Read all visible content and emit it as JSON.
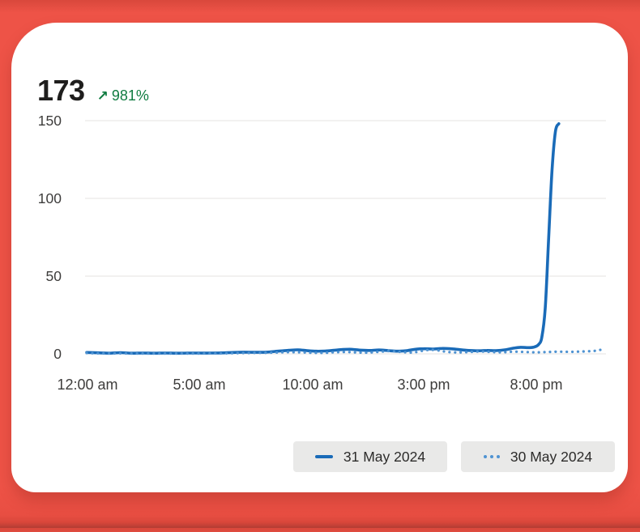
{
  "header": {
    "value": "173",
    "delta_arrow": "↗",
    "delta": "981%",
    "delta_percent": 981,
    "delta_color": "#107C41"
  },
  "colors": {
    "background_red": "#ee5347",
    "card": "#ffffff",
    "grid": "#e4e3e2",
    "axis_text": "#3e3d3c",
    "legend_bg": "#e9e9e8",
    "series_solid": "#1a6bb8",
    "series_dotted": "#4f93d2",
    "value_text": "#1f1e1d"
  },
  "legend": {
    "items": [
      {
        "label": "31 May 2024",
        "marker": "solid-line"
      },
      {
        "label": "30 May 2024",
        "marker": "dotted-line"
      }
    ]
  },
  "chart_data": {
    "type": "line",
    "title": "",
    "xlabel": "",
    "ylabel": "",
    "grid": true,
    "legend_position": "bottom-right",
    "x_axis": {
      "unit": "hour-of-day",
      "ticks": [
        "12:00 am",
        "5:00 am",
        "10:00 am",
        "3:00 pm",
        "8:00 pm"
      ],
      "tick_hours": [
        0,
        5,
        10,
        15,
        20
      ],
      "range_hours": [
        0,
        23.1
      ]
    },
    "y_axis": {
      "ticks": [
        "150",
        "100",
        "50",
        "0"
      ],
      "tick_values": [
        150,
        100,
        50,
        0
      ],
      "range": [
        0,
        150
      ]
    },
    "series": [
      {
        "name": "31 May 2024",
        "style": "solid",
        "color": "#1a6bb8",
        "points": [
          [
            0,
            0.9
          ],
          [
            0.5,
            0.7
          ],
          [
            1,
            0.4
          ],
          [
            1.5,
            0.8
          ],
          [
            2,
            0.4
          ],
          [
            2.5,
            0.5
          ],
          [
            3,
            0.4
          ],
          [
            3.5,
            0.5
          ],
          [
            4,
            0.4
          ],
          [
            4.5,
            0.5
          ],
          [
            5,
            0.5
          ],
          [
            5.5,
            0.5
          ],
          [
            6,
            0.6
          ],
          [
            6.5,
            0.9
          ],
          [
            7,
            1.1
          ],
          [
            7.5,
            1.0
          ],
          [
            8,
            1.1
          ],
          [
            8.5,
            1.7
          ],
          [
            9,
            2.3
          ],
          [
            9.4,
            2.6
          ],
          [
            9.8,
            2.1
          ],
          [
            10.2,
            1.7
          ],
          [
            10.6,
            1.8
          ],
          [
            11,
            2.3
          ],
          [
            11.4,
            2.8
          ],
          [
            11.8,
            2.9
          ],
          [
            12.2,
            2.4
          ],
          [
            12.6,
            2.2
          ],
          [
            13,
            2.5
          ],
          [
            13.4,
            2.1
          ],
          [
            13.8,
            1.7
          ],
          [
            14.2,
            2.0
          ],
          [
            14.6,
            2.9
          ],
          [
            15,
            3.3
          ],
          [
            15.4,
            3.1
          ],
          [
            15.8,
            3.5
          ],
          [
            16.2,
            3.3
          ],
          [
            16.6,
            2.7
          ],
          [
            17,
            2.2
          ],
          [
            17.4,
            2.0
          ],
          [
            17.8,
            2.2
          ],
          [
            18.2,
            2.1
          ],
          [
            18.6,
            2.6
          ],
          [
            19,
            3.7
          ],
          [
            19.3,
            4.2
          ],
          [
            19.6,
            4.0
          ],
          [
            19.9,
            4.4
          ],
          [
            20.1,
            6.0
          ],
          [
            20.25,
            11
          ],
          [
            20.4,
            30
          ],
          [
            20.55,
            75
          ],
          [
            20.7,
            118
          ],
          [
            20.85,
            143
          ],
          [
            21,
            148
          ]
        ]
      },
      {
        "name": "30 May 2024",
        "style": "dotted",
        "color": "#4f93d2",
        "points": [
          [
            0,
            0.5
          ],
          [
            0.5,
            0.3
          ],
          [
            1,
            0.2
          ],
          [
            1.5,
            0.3
          ],
          [
            2,
            0.2
          ],
          [
            2.5,
            0.2
          ],
          [
            3,
            0.2
          ],
          [
            3.5,
            0.2
          ],
          [
            4,
            0.2
          ],
          [
            4.5,
            0.2
          ],
          [
            5,
            0.2
          ],
          [
            5.5,
            0.3
          ],
          [
            6,
            0.3
          ],
          [
            6.5,
            0.4
          ],
          [
            7,
            0.5
          ],
          [
            7.5,
            0.6
          ],
          [
            8,
            0.7
          ],
          [
            8.5,
            0.9
          ],
          [
            9,
            1.1
          ],
          [
            9.5,
            1.0
          ],
          [
            10,
            0.7
          ],
          [
            10.5,
            0.6
          ],
          [
            11,
            1.0
          ],
          [
            11.5,
            1.2
          ],
          [
            12,
            0.9
          ],
          [
            12.5,
            0.8
          ],
          [
            13,
            1.3
          ],
          [
            13.5,
            1.8
          ],
          [
            14,
            1.2
          ],
          [
            14.5,
            0.9
          ],
          [
            15,
            2.1
          ],
          [
            15.3,
            2.6
          ],
          [
            15.7,
            2.1
          ],
          [
            16,
            1.3
          ],
          [
            16.5,
            0.9
          ],
          [
            17,
            1.2
          ],
          [
            17.5,
            1.5
          ],
          [
            18,
            1.2
          ],
          [
            18.5,
            1.0
          ],
          [
            19,
            1.4
          ],
          [
            19.5,
            1.2
          ],
          [
            20,
            1.0
          ],
          [
            20.5,
            1.2
          ],
          [
            21,
            1.4
          ],
          [
            21.5,
            1.3
          ],
          [
            22,
            1.5
          ],
          [
            22.5,
            1.8
          ],
          [
            22.8,
            2.4
          ],
          [
            23,
            3.3
          ]
        ]
      }
    ]
  }
}
